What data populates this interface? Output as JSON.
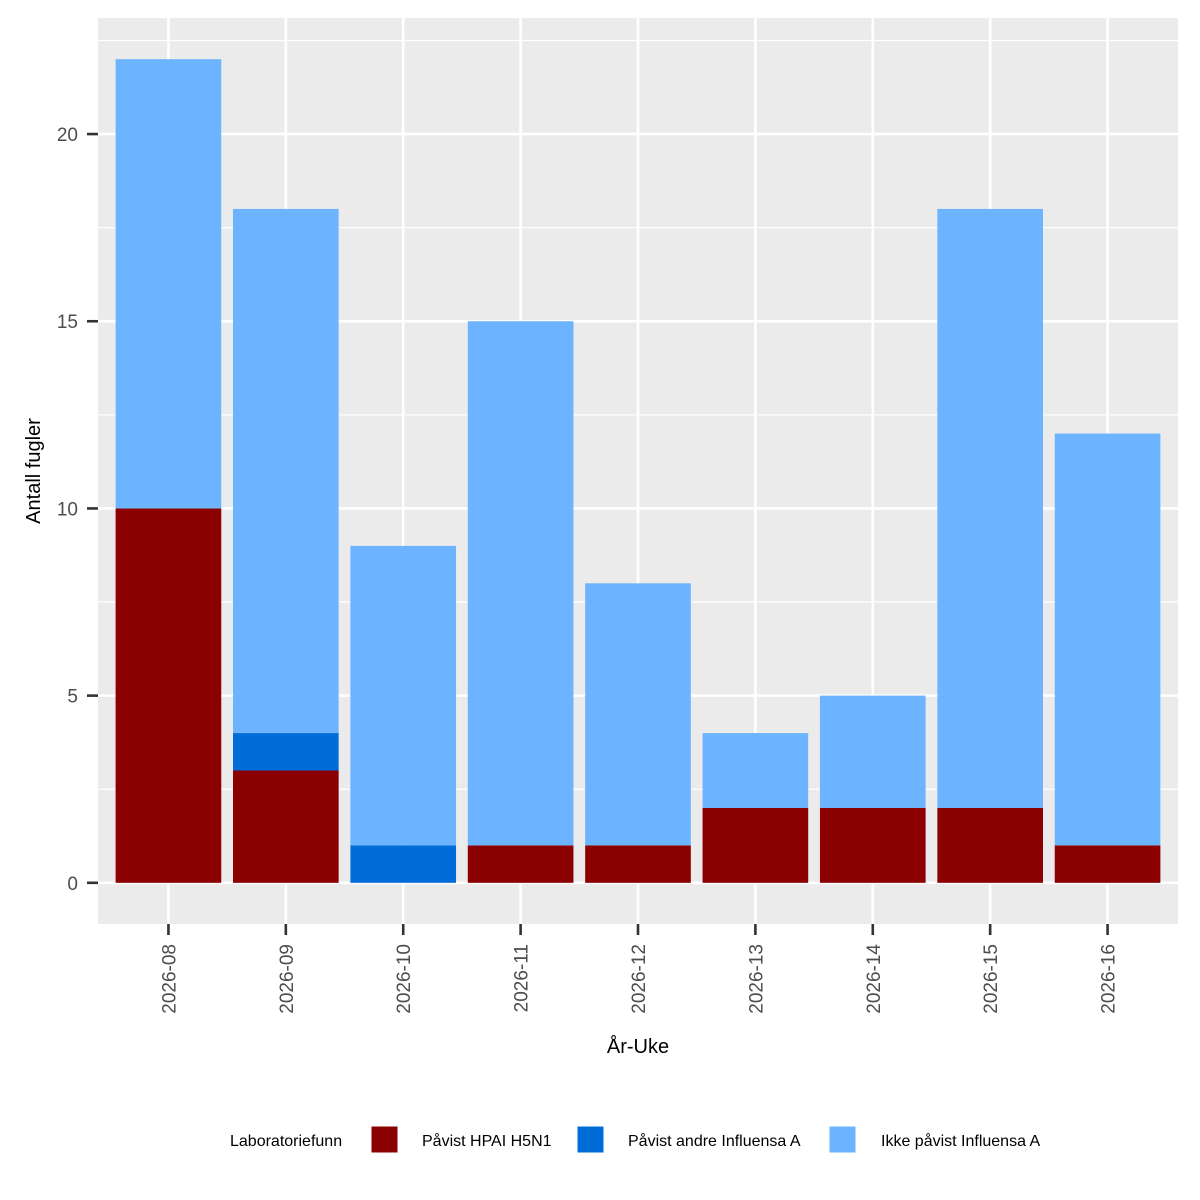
{
  "chart_data": {
    "type": "bar",
    "stacked": true,
    "title": "",
    "xlabel": "År-Uke",
    "ylabel": "Antall fugler",
    "categories": [
      "2026-08",
      "2026-09",
      "2026-10",
      "2026-11",
      "2026-12",
      "2026-13",
      "2026-14",
      "2026-15",
      "2026-16"
    ],
    "series": [
      {
        "name": "Påvist HPAI H5N1",
        "color": "#8b0000",
        "values": [
          10,
          3,
          0,
          1,
          1,
          2,
          2,
          2,
          1
        ]
      },
      {
        "name": "Påvist andre Influensa A",
        "color": "#006cd8",
        "values": [
          0,
          1,
          1,
          0,
          0,
          0,
          0,
          0,
          0
        ]
      },
      {
        "name": "Ikke påvist Influensa A",
        "color": "#6cb4ff",
        "values": [
          12,
          14,
          8,
          14,
          7,
          2,
          3,
          16,
          11
        ]
      }
    ],
    "ylim": [
      -1.1,
      23.1
    ],
    "yticks": [
      0,
      5,
      10,
      15,
      20
    ],
    "grid": true,
    "legend": {
      "title": "Laboratoriefunn",
      "position": "bottom"
    },
    "panel_color": "#ebebeb"
  }
}
